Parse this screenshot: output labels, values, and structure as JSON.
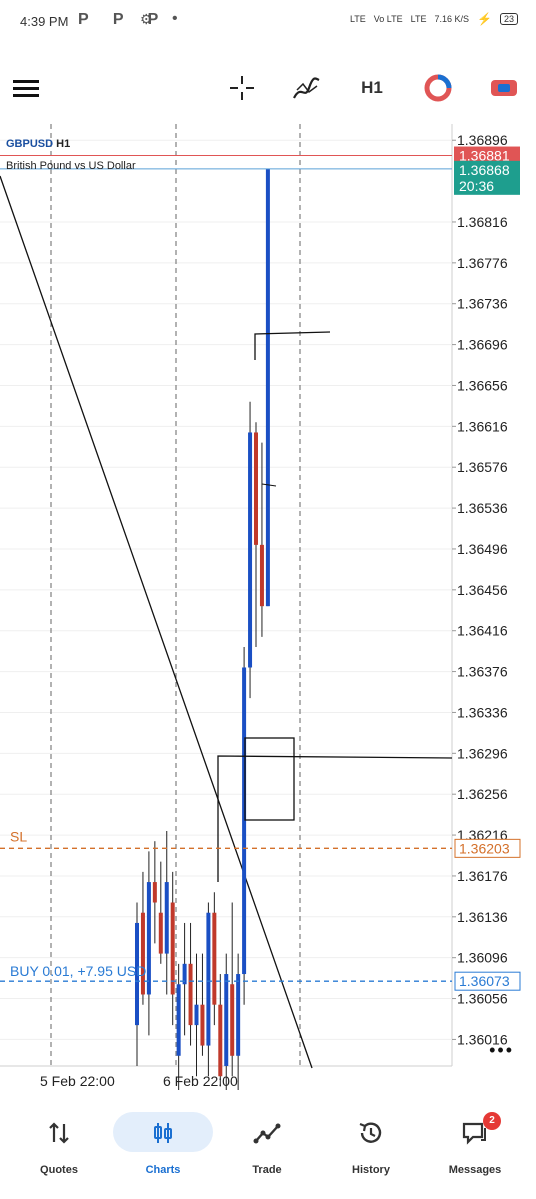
{
  "status_bar": {
    "time": "4:39 PM",
    "apps": "P P P",
    "net": "LTE",
    "volte": "Vo LTE",
    "net2": "LTE",
    "speed": "7.16 K/S",
    "battery": "23"
  },
  "toolbar": {
    "timeframe": "H1"
  },
  "chart": {
    "symbol": "GBPUSD",
    "timeframe_tag": "H1",
    "description": "British Pound vs US Dollar",
    "price_levels": [
      "1.36896",
      "1.36816",
      "1.36776",
      "1.36736",
      "1.36696",
      "1.36656",
      "1.36616",
      "1.36576",
      "1.36536",
      "1.36496",
      "1.36456",
      "1.36416",
      "1.36376",
      "1.36336",
      "1.36296",
      "1.36256",
      "1.36216",
      "1.36176",
      "1.36136",
      "1.36096",
      "1.36056",
      "1.36016"
    ],
    "ask_price": "1.36881",
    "bid_price": "1.36868",
    "bar_timer": "20:36",
    "sl_label": "SL",
    "sl_price": "1.36203",
    "position_label": "BUY 0.01,   +7.95 USD",
    "position_price": "1.36073",
    "time_labels": [
      "5 Feb 22:00",
      "6 Feb 22:00"
    ],
    "colors": {
      "bull": "#1a4fc4",
      "bear": "#c0392b",
      "sl": "#d4702a",
      "position": "#2a7bd4",
      "ask": "#e05555",
      "bid": "#1e9e8e"
    }
  },
  "chart_data": {
    "type": "candlestick",
    "ylim": [
      1.3599,
      1.36906
    ],
    "candles": [
      {
        "o": 1.3603,
        "h": 1.3615,
        "l": 1.3599,
        "c": 1.3613
      },
      {
        "o": 1.3614,
        "h": 1.3618,
        "l": 1.3605,
        "c": 1.3606
      },
      {
        "o": 1.3606,
        "h": 1.362,
        "l": 1.3602,
        "c": 1.3617
      },
      {
        "o": 1.3617,
        "h": 1.3621,
        "l": 1.3611,
        "c": 1.3615
      },
      {
        "o": 1.3614,
        "h": 1.3619,
        "l": 1.3609,
        "c": 1.361
      },
      {
        "o": 1.361,
        "h": 1.3622,
        "l": 1.3606,
        "c": 1.3617
      },
      {
        "o": 1.3615,
        "h": 1.3618,
        "l": 1.3603,
        "c": 1.3606
      },
      {
        "o": 1.36,
        "h": 1.3609,
        "l": 1.3596,
        "c": 1.3607
      },
      {
        "o": 1.3607,
        "h": 1.3613,
        "l": 1.3602,
        "c": 1.3609
      },
      {
        "o": 1.3609,
        "h": 1.3613,
        "l": 1.3601,
        "c": 1.3603
      },
      {
        "o": 1.3603,
        "h": 1.361,
        "l": 1.3598,
        "c": 1.3605
      },
      {
        "o": 1.3605,
        "h": 1.361,
        "l": 1.36,
        "c": 1.3601
      },
      {
        "o": 1.3601,
        "h": 1.3615,
        "l": 1.3598,
        "c": 1.3614
      },
      {
        "o": 1.3614,
        "h": 1.3616,
        "l": 1.3603,
        "c": 1.3605
      },
      {
        "o": 1.3605,
        "h": 1.3608,
        "l": 1.3597,
        "c": 1.3598
      },
      {
        "o": 1.3599,
        "h": 1.361,
        "l": 1.3596,
        "c": 1.3608
      },
      {
        "o": 1.3607,
        "h": 1.3615,
        "l": 1.3598,
        "c": 1.36
      },
      {
        "o": 1.36,
        "h": 1.361,
        "l": 1.3596,
        "c": 1.3608
      },
      {
        "o": 1.3608,
        "h": 1.364,
        "l": 1.3605,
        "c": 1.3638
      },
      {
        "o": 1.3638,
        "h": 1.3664,
        "l": 1.3635,
        "c": 1.3661
      },
      {
        "o": 1.3661,
        "h": 1.3662,
        "l": 1.364,
        "c": 1.365
      },
      {
        "o": 1.365,
        "h": 1.366,
        "l": 1.3641,
        "c": 1.3644
      },
      {
        "o": 1.3644,
        "h": 1.36868,
        "l": 1.3644,
        "c": 1.36868
      }
    ],
    "trendline": [
      [
        1.3686,
        1.36
      ]
    ]
  },
  "nav": {
    "quotes": "Quotes",
    "charts": "Charts",
    "trade": "Trade",
    "history": "History",
    "messages": "Messages",
    "messages_badge": "2"
  }
}
